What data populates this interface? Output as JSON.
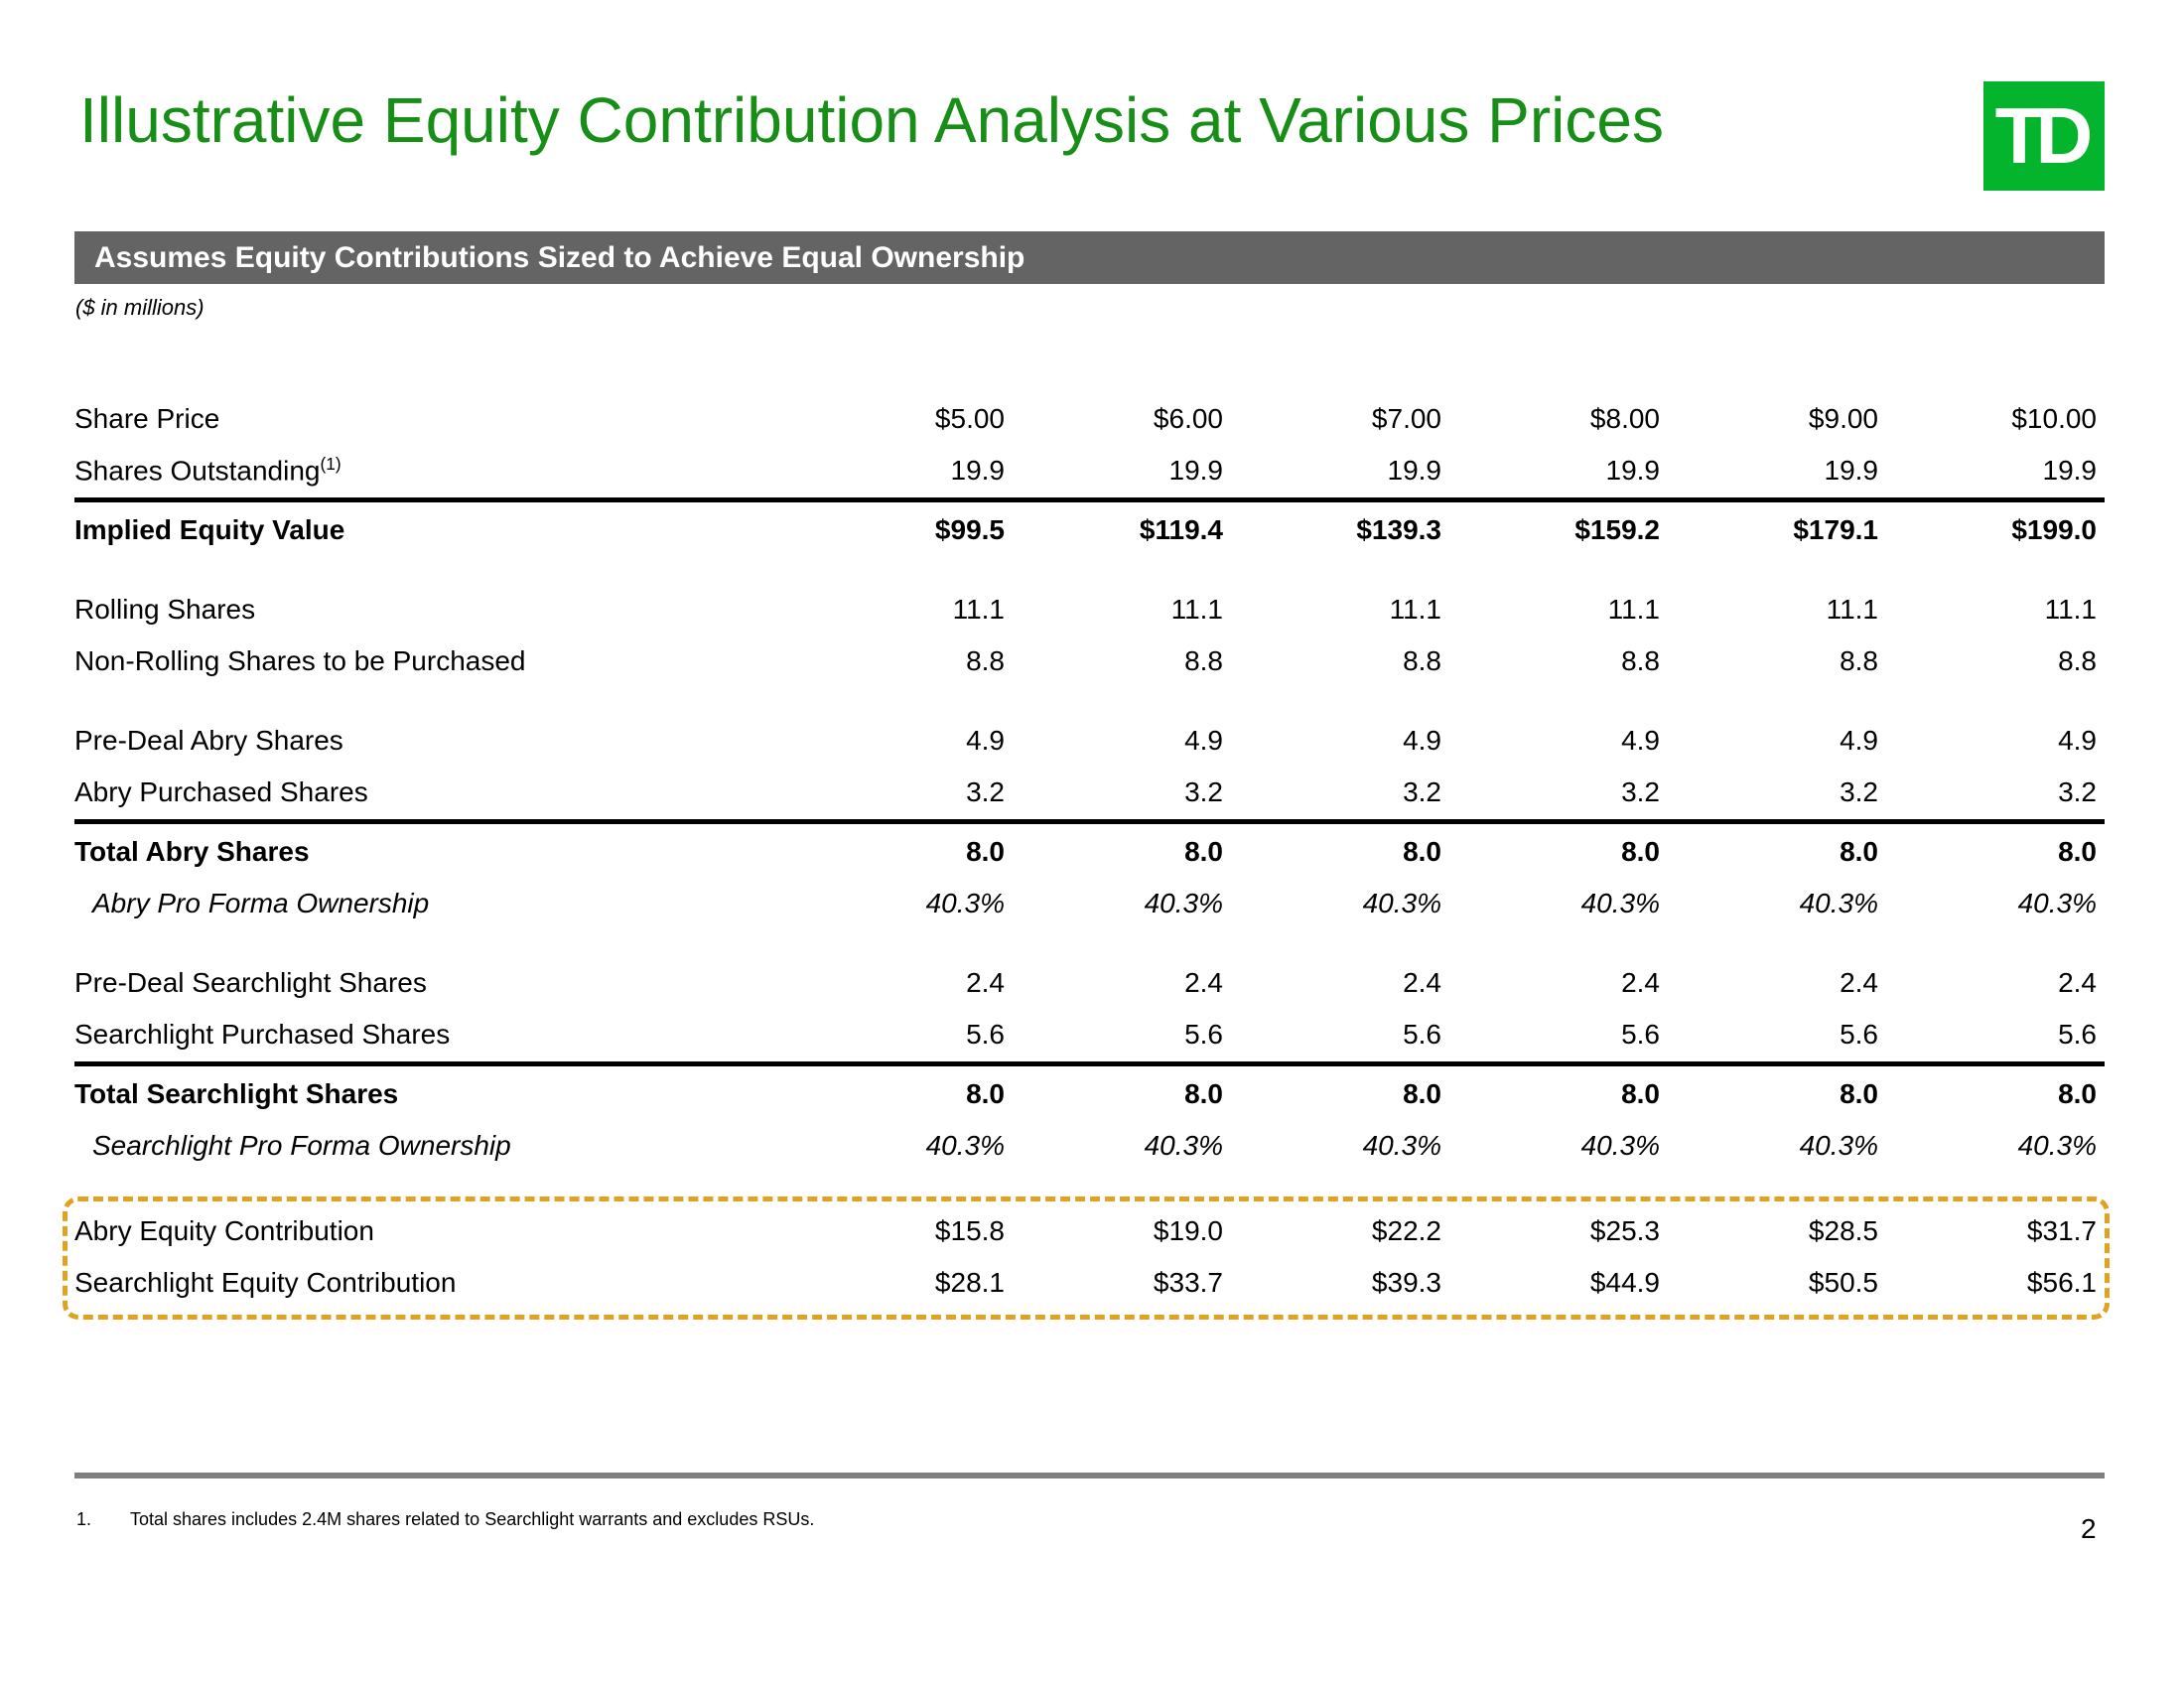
{
  "slide": {
    "title": "Illustrative Equity Contribution Analysis at Various Prices",
    "logo_text": "TD",
    "section_header": "Assumes Equity Contributions Sized to Achieve Equal Ownership",
    "units_note": "($ in millions)",
    "footnote_number": "1.",
    "footnote_text": "Total shares includes 2.4M shares related to Searchlight warrants and excludes RSUs.",
    "page_number": "2"
  },
  "colors": {
    "title_green": "#178f17",
    "logo_green": "#04b42c",
    "header_bar_gray": "#646464",
    "divider_gray": "#7f7f7f",
    "highlight_dash_gold": "#dfa321"
  },
  "table": {
    "rows": [
      {
        "type": "data",
        "label": "Share Price",
        "values": [
          "$5.00",
          "$6.00",
          "$7.00",
          "$8.00",
          "$9.00",
          "$10.00"
        ]
      },
      {
        "type": "data",
        "label": "Shares Outstanding",
        "sup": "(1)",
        "values": [
          "19.9",
          "19.9",
          "19.9",
          "19.9",
          "19.9",
          "19.9"
        ]
      },
      {
        "type": "rule"
      },
      {
        "type": "data",
        "label": "Implied Equity Value",
        "bold": true,
        "values": [
          "$99.5",
          "$119.4",
          "$139.3",
          "$159.2",
          "$179.1",
          "$199.0"
        ]
      },
      {
        "type": "spacer"
      },
      {
        "type": "data",
        "label": "Rolling Shares",
        "values": [
          "11.1",
          "11.1",
          "11.1",
          "11.1",
          "11.1",
          "11.1"
        ]
      },
      {
        "type": "data",
        "label": "Non-Rolling Shares to be Purchased",
        "values": [
          "8.8",
          "8.8",
          "8.8",
          "8.8",
          "8.8",
          "8.8"
        ]
      },
      {
        "type": "spacer"
      },
      {
        "type": "data",
        "label": "Pre-Deal Abry Shares",
        "values": [
          "4.9",
          "4.9",
          "4.9",
          "4.9",
          "4.9",
          "4.9"
        ]
      },
      {
        "type": "data",
        "label": "Abry Purchased Shares",
        "values": [
          "3.2",
          "3.2",
          "3.2",
          "3.2",
          "3.2",
          "3.2"
        ]
      },
      {
        "type": "rule"
      },
      {
        "type": "data",
        "label": "Total Abry Shares",
        "bold": true,
        "values": [
          "8.0",
          "8.0",
          "8.0",
          "8.0",
          "8.0",
          "8.0"
        ]
      },
      {
        "type": "data",
        "label": "Abry Pro Forma Ownership",
        "italic": true,
        "indent": true,
        "values": [
          "40.3%",
          "40.3%",
          "40.3%",
          "40.3%",
          "40.3%",
          "40.3%"
        ]
      },
      {
        "type": "spacer"
      },
      {
        "type": "data",
        "label": "Pre-Deal Searchlight Shares",
        "values": [
          "2.4",
          "2.4",
          "2.4",
          "2.4",
          "2.4",
          "2.4"
        ]
      },
      {
        "type": "data",
        "label": "Searchlight Purchased Shares",
        "values": [
          "5.6",
          "5.6",
          "5.6",
          "5.6",
          "5.6",
          "5.6"
        ]
      },
      {
        "type": "rule"
      },
      {
        "type": "data",
        "label": "Total Searchlight Shares",
        "bold": true,
        "values": [
          "8.0",
          "8.0",
          "8.0",
          "8.0",
          "8.0",
          "8.0"
        ]
      },
      {
        "type": "data",
        "label": "Searchlight Pro Forma Ownership",
        "italic": true,
        "indent": true,
        "values": [
          "40.3%",
          "40.3%",
          "40.3%",
          "40.3%",
          "40.3%",
          "40.3%"
        ]
      }
    ],
    "highlight_box": {
      "rows": [
        {
          "type": "data",
          "label": "Abry Equity Contribution",
          "values": [
            "$15.8",
            "$19.0",
            "$22.2",
            "$25.3",
            "$28.5",
            "$31.7"
          ]
        },
        {
          "type": "data",
          "label": "Searchlight Equity Contribution",
          "values": [
            "$28.1",
            "$33.7",
            "$39.3",
            "$44.9",
            "$50.5",
            "$56.1"
          ]
        }
      ]
    }
  }
}
